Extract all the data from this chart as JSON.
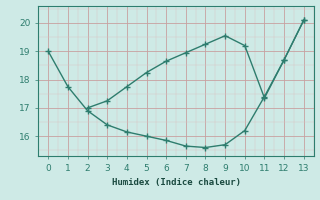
{
  "line1_x": [
    0,
    1,
    2,
    3,
    4,
    5,
    6,
    7,
    8,
    9,
    10,
    11,
    12,
    13
  ],
  "line1_y": [
    19.0,
    17.75,
    16.9,
    16.4,
    16.15,
    16.0,
    15.85,
    15.65,
    15.6,
    15.7,
    16.2,
    17.4,
    18.7,
    20.1
  ],
  "line2_x": [
    2,
    3,
    4,
    5,
    6,
    7,
    8,
    9,
    10,
    11,
    12,
    13
  ],
  "line2_y": [
    17.0,
    17.25,
    17.75,
    18.25,
    18.65,
    18.95,
    19.25,
    19.55,
    19.2,
    17.35,
    18.7,
    20.1
  ],
  "color": "#2e7d6e",
  "bg_color": "#ceeae6",
  "xlabel": "Humidex (Indice chaleur)",
  "xlim": [
    -0.5,
    13.5
  ],
  "ylim": [
    15.3,
    20.6
  ],
  "yticks": [
    16,
    17,
    18,
    19,
    20
  ],
  "xticks": [
    0,
    1,
    2,
    3,
    4,
    5,
    6,
    7,
    8,
    9,
    10,
    11,
    12,
    13
  ],
  "linewidth": 1.0,
  "markersize": 4.0,
  "major_grid_color": "#c8a0a0",
  "minor_grid_color": "#dcc0c0"
}
